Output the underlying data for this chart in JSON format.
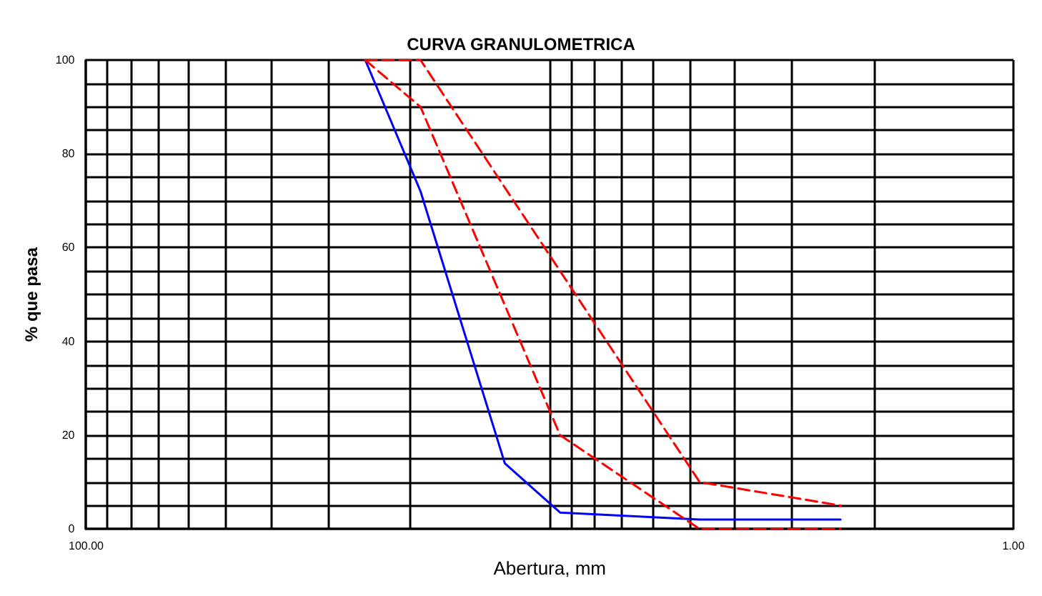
{
  "chart_data": {
    "type": "line",
    "title": "CURVA GRANULOMETRICA",
    "xlabel": "Abertura, mm",
    "ylabel": "% que pasa",
    "log": "x",
    "xlim": [
      100,
      1
    ],
    "xticks": [
      {
        "value": 100,
        "label": "100.00"
      },
      {
        "value": 90,
        "label": null
      },
      {
        "value": 80,
        "label": null
      },
      {
        "value": 70,
        "label": null
      },
      {
        "value": 60,
        "label": null
      },
      {
        "value": 50,
        "label": null
      },
      {
        "value": 40,
        "label": null
      },
      {
        "value": 30,
        "label": null
      },
      {
        "value": 20,
        "label": null
      },
      {
        "value": 10,
        "label": null
      },
      {
        "value": 9,
        "label": null
      },
      {
        "value": 8,
        "label": null
      },
      {
        "value": 7,
        "label": null
      },
      {
        "value": 6,
        "label": null
      },
      {
        "value": 5,
        "label": null
      },
      {
        "value": 4,
        "label": null
      },
      {
        "value": 3,
        "label": null
      },
      {
        "value": 2,
        "label": null
      },
      {
        "value": 1,
        "label": "1.00"
      }
    ],
    "ylim": [
      0,
      100
    ],
    "yticks": [
      0,
      {
        "value": 5,
        "label": null
      },
      {
        "value": 10,
        "label": null
      },
      {
        "value": 15,
        "label": null
      },
      20,
      {
        "value": 25,
        "label": null
      },
      {
        "value": 30,
        "label": null
      },
      {
        "value": 35,
        "label": null
      },
      40,
      {
        "value": 45,
        "label": null
      },
      {
        "value": 50,
        "label": null
      },
      {
        "value": 55,
        "label": null
      },
      60,
      {
        "value": 65,
        "label": null
      },
      {
        "value": 70,
        "label": null
      },
      {
        "value": 75,
        "label": null
      },
      80,
      {
        "value": 85,
        "label": null
      },
      {
        "value": 90,
        "label": null
      },
      {
        "value": 95,
        "label": null
      },
      100
    ],
    "grid": true,
    "marker": "none",
    "series": [
      {
        "color": "#0000ff",
        "line_style": "solid",
        "x": [
          25,
          19,
          12.5,
          9.5,
          4.75,
          2.36
        ],
        "values": [
          100,
          72,
          14,
          3.5,
          2,
          2
        ]
      },
      {
        "color": "#ff0000",
        "line_style": "dashed",
        "x": [
          25,
          19,
          9.5,
          4.75,
          2.36
        ],
        "values": [
          100,
          90,
          20,
          0,
          0
        ]
      },
      {
        "color": "#ff0000",
        "line_style": "dashed",
        "x": [
          25,
          19,
          9.5,
          4.75,
          2.36
        ],
        "values": [
          100,
          100,
          55,
          10,
          5
        ]
      }
    ]
  }
}
